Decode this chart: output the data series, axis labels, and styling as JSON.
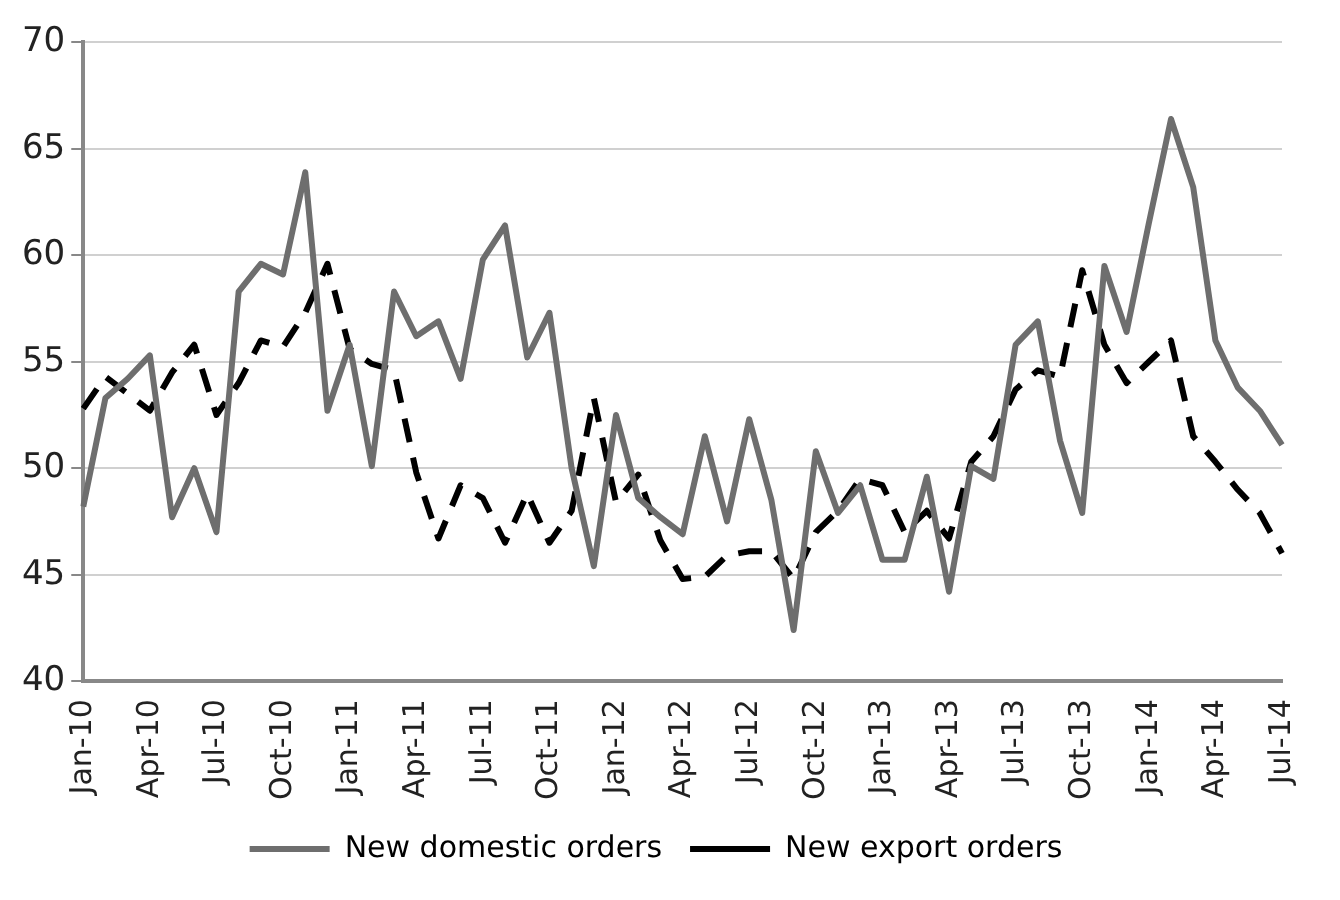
{
  "chart_data": {
    "type": "line",
    "categories": [
      "Jan-10",
      null,
      null,
      "Apr-10",
      null,
      null,
      "Jul-10",
      null,
      null,
      "Oct-10",
      null,
      null,
      "Jan-11",
      null,
      null,
      "Apr-11",
      null,
      null,
      "Jul-11",
      null,
      null,
      "Oct-11",
      null,
      null,
      "Jan-12",
      null,
      null,
      "Apr-12",
      null,
      null,
      "Jul-12",
      null,
      null,
      "Oct-12",
      null,
      null,
      "Jan-13",
      null,
      null,
      "Apr-13",
      null,
      null,
      "Jul-13",
      null,
      null,
      "Oct-13",
      null,
      null,
      "Jan-14",
      null,
      null,
      "Apr-14",
      null,
      null,
      "Jul-14"
    ],
    "series": [
      {
        "name": "New domestic orders",
        "color": "#6e6e6e",
        "line_style": "solid",
        "values": [
          48.2,
          53.3,
          54.2,
          55.3,
          47.7,
          50.0,
          47.0,
          58.3,
          59.6,
          59.1,
          63.9,
          52.7,
          55.8,
          50.1,
          58.3,
          56.2,
          56.9,
          54.2,
          59.8,
          61.4,
          55.2,
          57.3,
          50.0,
          45.4,
          52.5,
          48.6,
          47.7,
          46.9,
          51.5,
          47.5,
          52.3,
          48.5,
          42.4,
          50.8,
          47.9,
          49.2,
          45.7,
          45.7,
          49.6,
          44.2,
          50.1,
          49.5,
          55.8,
          56.9,
          51.3,
          47.9,
          59.5,
          56.4,
          61.5,
          66.4,
          63.2,
          56.0,
          53.8,
          52.7,
          51.1
        ]
      },
      {
        "name": "New export orders",
        "color": "#000000",
        "line_style": "dashed",
        "values": [
          52.8,
          54.3,
          53.5,
          52.7,
          54.5,
          55.8,
          52.5,
          54.0,
          56.0,
          55.7,
          57.3,
          59.6,
          55.6,
          54.9,
          54.6,
          49.8,
          46.7,
          49.2,
          48.6,
          46.5,
          48.8,
          46.5,
          48.0,
          53.3,
          48.4,
          49.7,
          46.6,
          44.8,
          44.9,
          45.9,
          46.1,
          46.1,
          44.8,
          47.0,
          48.0,
          49.5,
          49.2,
          47.0,
          48.0,
          46.7,
          50.3,
          51.5,
          53.7,
          54.6,
          54.3,
          59.3,
          55.8,
          54.0,
          55.0,
          56.0,
          51.5,
          50.3,
          49.0,
          47.9,
          46.0
        ]
      }
    ],
    "ylim": [
      40,
      70
    ],
    "yticks": [
      40,
      45,
      50,
      55,
      60,
      65,
      70
    ],
    "grid": "y",
    "legend": "bottom",
    "marker": "none"
  }
}
